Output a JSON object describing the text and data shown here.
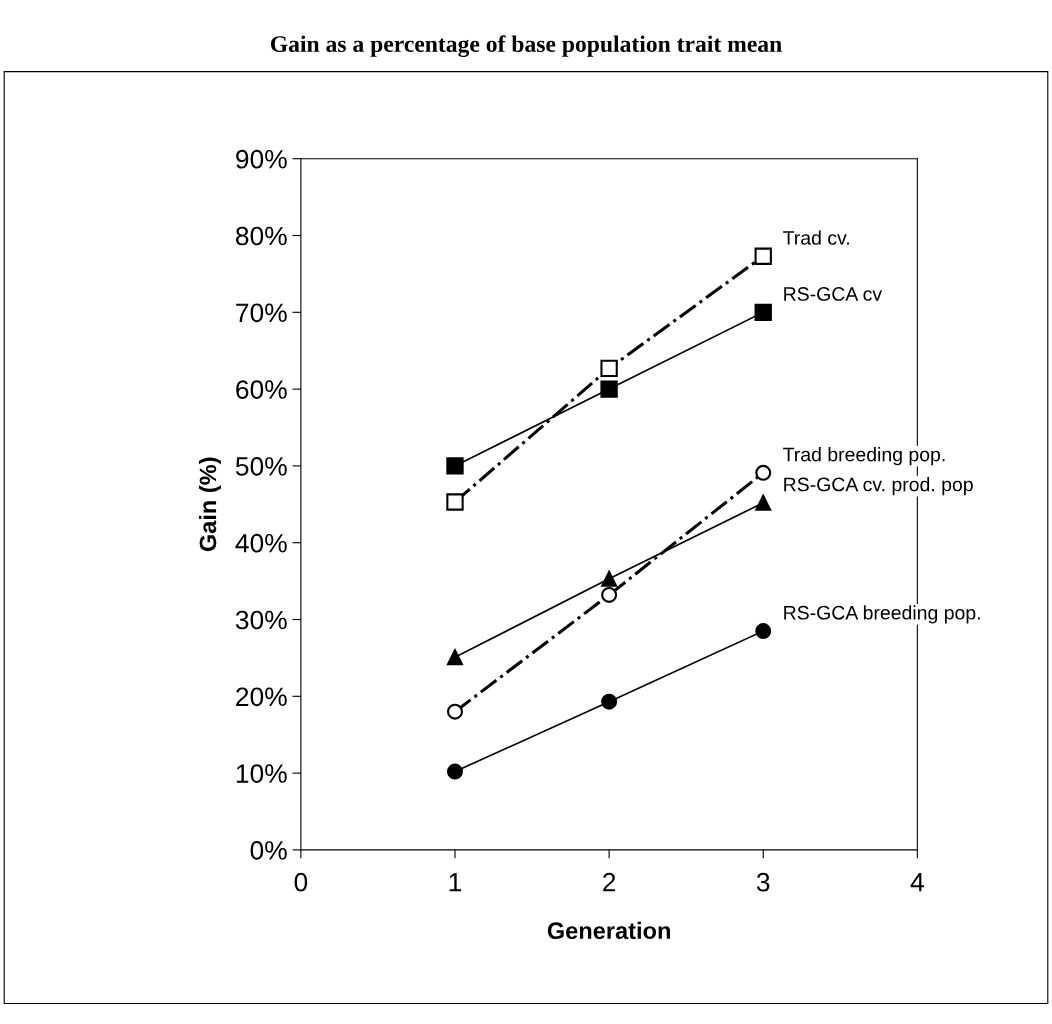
{
  "chart_data": {
    "type": "line",
    "title": "Gain as a percentage of base population trait mean",
    "xlabel": "Generation",
    "ylabel": "Gain (%)",
    "xlim": [
      0,
      4
    ],
    "xticks": [
      0,
      1,
      2,
      3,
      4
    ],
    "ylim": [
      0,
      90
    ],
    "yticks": [
      {
        "value": 0,
        "label": "0%"
      },
      {
        "value": 10,
        "label": "10%"
      },
      {
        "value": 20,
        "label": "20%"
      },
      {
        "value": 30,
        "label": "30%"
      },
      {
        "value": 40,
        "label": "40%"
      },
      {
        "value": 50,
        "label": "50%"
      },
      {
        "value": 60,
        "label": "60%"
      },
      {
        "value": 70,
        "label": "70%"
      },
      {
        "value": 80,
        "label": "80%"
      },
      {
        "value": 90,
        "label": "90%"
      }
    ],
    "x": [
      1,
      2,
      3
    ],
    "grid": false,
    "legend": false,
    "series": [
      {
        "name": "Trad cv.",
        "color": "#000000",
        "values": [
          45.3,
          62.7,
          77.3
        ],
        "marker": "square",
        "line_style": "dashdot"
      },
      {
        "name": "RS-GCA cv",
        "color": "#000000",
        "values": [
          50,
          60,
          70
        ],
        "marker": "square",
        "line_style": "solid"
      },
      {
        "name": "Trad breeding pop.",
        "color": "#000000",
        "values": [
          18.0,
          33.2,
          49.1
        ],
        "marker": "circle",
        "line_style": "dashdot"
      },
      {
        "name": "RS-GCA cv. prod. pop",
        "color": "#000000",
        "values": [
          25.1,
          35.3,
          45.2
        ],
        "marker": "triangle",
        "line_style": "solid"
      },
      {
        "name": "RS-GCA breeding pop.",
        "color": "#000000",
        "values": [
          10.2,
          19.3,
          28.5
        ],
        "marker": "circle",
        "line_style": "solid"
      }
    ]
  }
}
